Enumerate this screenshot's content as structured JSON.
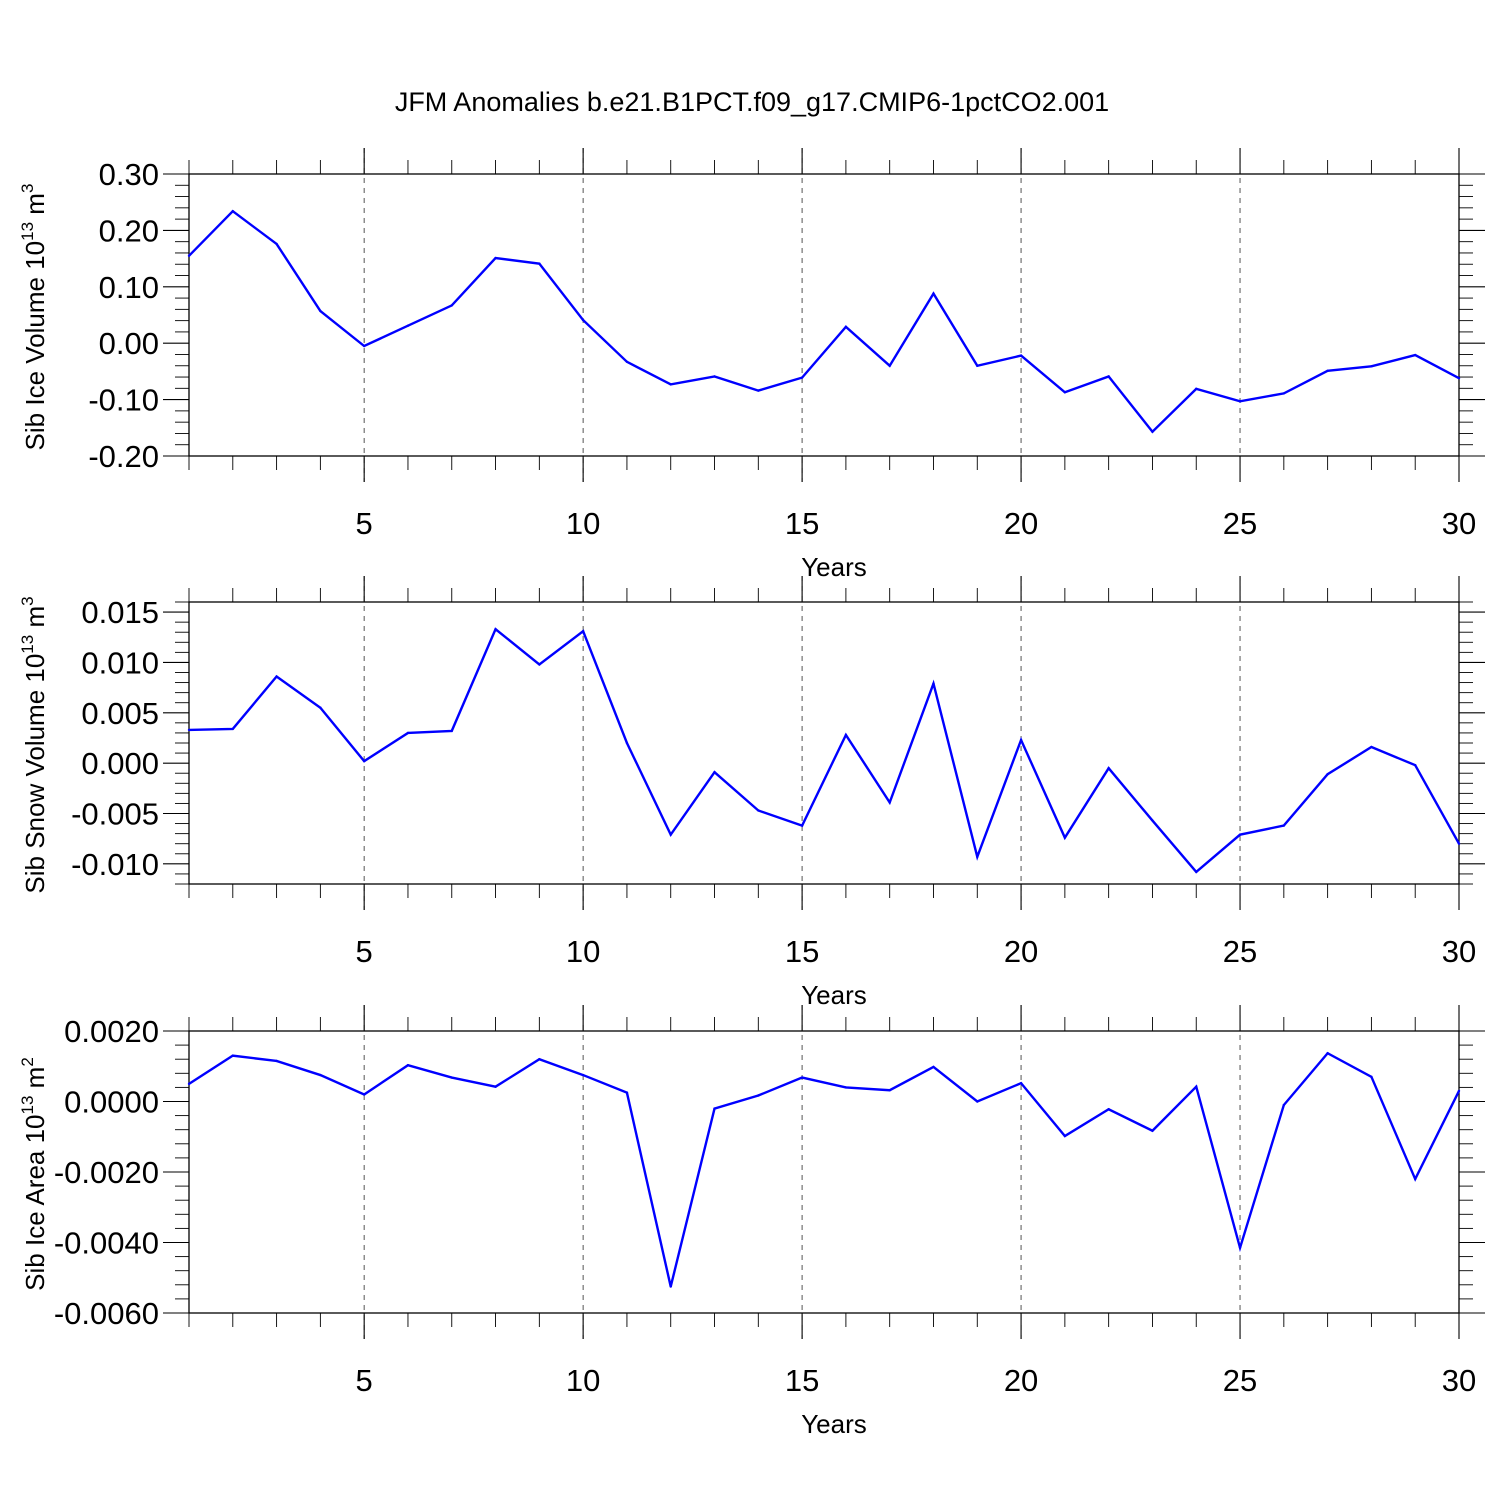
{
  "chart_data": {
    "title": "JFM Anomalies b.e21.B1PCT.f09_g17.CMIP6-1pctCO2.001",
    "line_color": "#0000ff",
    "panels": [
      {
        "type": "line",
        "ylabel": "Sib Ice Volume",
        "ylabel_unit": "10",
        "ylabel_exponent": "13",
        "ylabel_suffix": "m",
        "ylabel_suffix_exponent": "3",
        "xlabel": "Years",
        "xlim": [
          1,
          30
        ],
        "ylim": [
          -0.2,
          0.3
        ],
        "x_ticks": [
          5,
          10,
          15,
          20,
          25,
          30
        ],
        "x_tick_labels": [
          "5",
          "10",
          "15",
          "20",
          "25",
          "30"
        ],
        "y_ticks": [
          -0.2,
          -0.1,
          0.0,
          0.1,
          0.2,
          0.3
        ],
        "y_tick_labels": [
          "-0.20",
          "-0.10",
          "0.00",
          "0.10",
          "0.20",
          "0.30"
        ],
        "y_minor_step": 0.02,
        "x": [
          1,
          2,
          3,
          4,
          5,
          6,
          7,
          8,
          9,
          10,
          11,
          12,
          13,
          14,
          15,
          16,
          17,
          18,
          19,
          20,
          21,
          22,
          23,
          24,
          25,
          26,
          27,
          28,
          29,
          30
        ],
        "values": [
          0.155,
          0.234,
          0.176,
          0.057,
          -0.005,
          0.031,
          0.067,
          0.151,
          0.141,
          0.041,
          -0.033,
          -0.073,
          -0.059,
          -0.084,
          -0.061,
          0.029,
          -0.04,
          0.088,
          -0.04,
          -0.022,
          -0.087,
          -0.059,
          -0.157,
          -0.081,
          -0.103,
          -0.089,
          -0.049,
          -0.041,
          -0.021,
          -0.062
        ]
      },
      {
        "type": "line",
        "ylabel": "Sib Snow Volume",
        "ylabel_unit": "10",
        "ylabel_exponent": "13",
        "ylabel_suffix": "m",
        "ylabel_suffix_exponent": "3",
        "xlabel": "Years",
        "xlim": [
          1,
          30
        ],
        "ylim": [
          -0.012,
          0.016
        ],
        "x_ticks": [
          5,
          10,
          15,
          20,
          25,
          30
        ],
        "x_tick_labels": [
          "5",
          "10",
          "15",
          "20",
          "25",
          "30"
        ],
        "y_ticks": [
          -0.01,
          -0.005,
          0.0,
          0.005,
          0.01,
          0.015
        ],
        "y_tick_labels": [
          "-0.010",
          "-0.005",
          "0.000",
          "0.005",
          "0.010",
          "0.015"
        ],
        "y_minor_step": 0.001,
        "x": [
          1,
          2,
          3,
          4,
          5,
          6,
          7,
          8,
          9,
          10,
          11,
          12,
          13,
          14,
          15,
          16,
          17,
          18,
          19,
          20,
          21,
          22,
          23,
          24,
          25,
          26,
          27,
          28,
          29,
          30
        ],
        "values": [
          0.0033,
          0.0034,
          0.0086,
          0.0055,
          0.0002,
          0.003,
          0.0032,
          0.0133,
          0.0098,
          0.0131,
          0.002,
          -0.0071,
          -0.0009,
          -0.0047,
          -0.0062,
          0.0028,
          -0.0039,
          0.0079,
          -0.0093,
          0.0023,
          -0.0074,
          -0.0005,
          -0.0057,
          -0.0108,
          -0.0071,
          -0.0062,
          -0.0011,
          0.0016,
          -0.0002,
          -0.008
        ]
      },
      {
        "type": "line",
        "ylabel": "Sib Ice Area",
        "ylabel_unit": "10",
        "ylabel_exponent": "13",
        "ylabel_suffix": "m",
        "ylabel_suffix_exponent": "2",
        "xlabel": "Years",
        "xlim": [
          1,
          30
        ],
        "ylim": [
          -0.006,
          0.002
        ],
        "x_ticks": [
          5,
          10,
          15,
          20,
          25,
          30
        ],
        "x_tick_labels": [
          "5",
          "10",
          "15",
          "20",
          "25",
          "30"
        ],
        "y_ticks": [
          -0.006,
          -0.004,
          -0.002,
          0.0,
          0.002
        ],
        "y_tick_labels": [
          "-0.0060",
          "-0.0040",
          "-0.0020",
          "0.0000",
          "0.0020"
        ],
        "y_minor_step": 0.0004,
        "x": [
          1,
          2,
          3,
          4,
          5,
          6,
          7,
          8,
          9,
          10,
          11,
          12,
          13,
          14,
          15,
          16,
          17,
          18,
          19,
          20,
          21,
          22,
          23,
          24,
          25,
          26,
          27,
          28,
          29,
          30
        ],
        "values": [
          0.0005,
          0.0013,
          0.00115,
          0.00075,
          0.0002,
          0.00103,
          0.00068,
          0.00042,
          0.0012,
          0.00075,
          0.00025,
          -0.00525,
          -0.0002,
          0.00017,
          0.00068,
          0.0004,
          0.00032,
          0.00098,
          0.0,
          0.00052,
          -0.00098,
          -0.00022,
          -0.00083,
          0.00042,
          -0.00415,
          -0.0001,
          0.00137,
          0.0007,
          -0.0022,
          0.0003
        ]
      }
    ]
  }
}
